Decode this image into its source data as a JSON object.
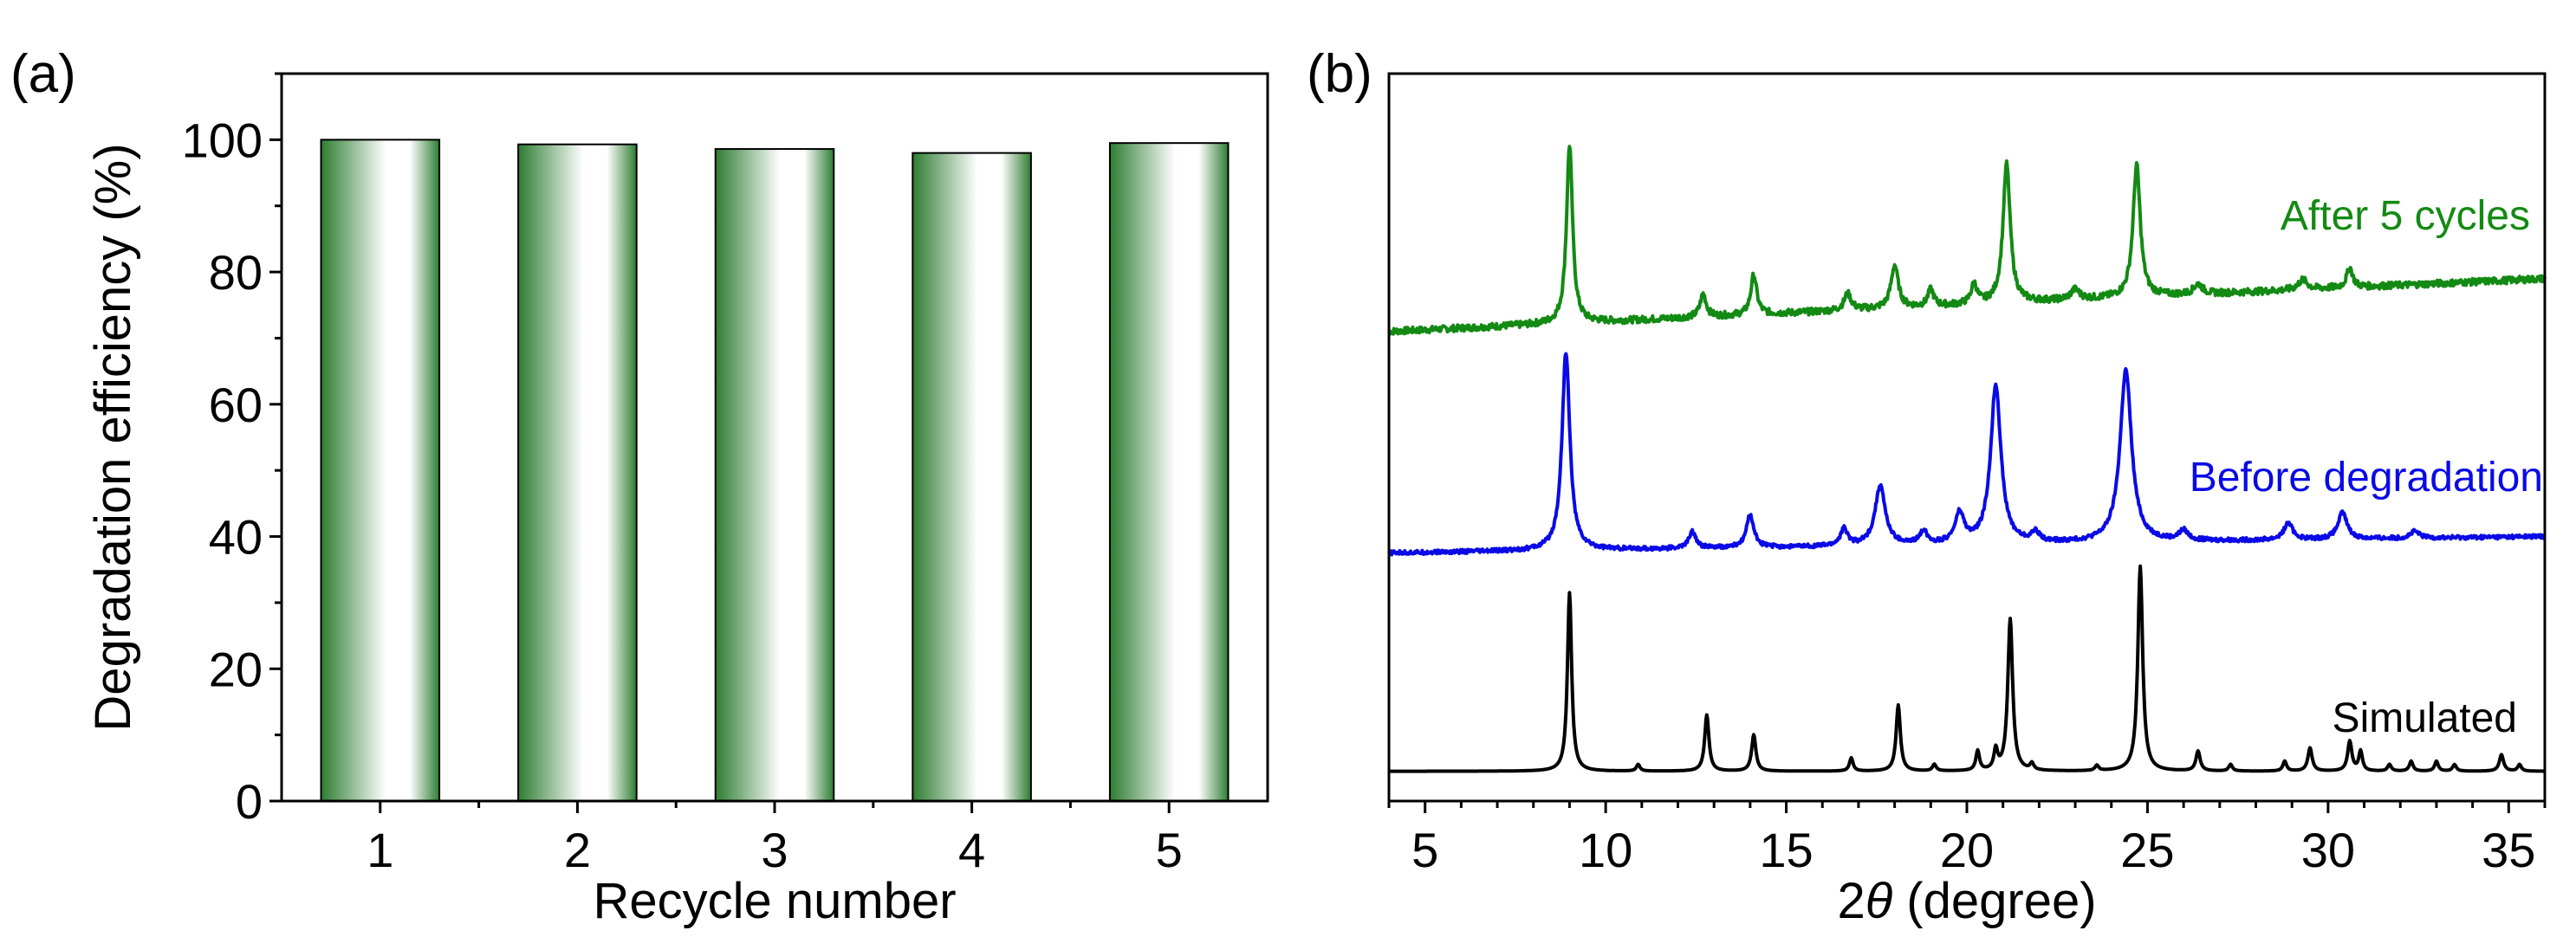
{
  "chart_data": [
    {
      "panel_label": "(a)",
      "type": "bar",
      "title": "",
      "xlabel": "Recycle number",
      "ylabel": "Degradation efficiency (%)",
      "categories": [
        "1",
        "2",
        "3",
        "4",
        "5"
      ],
      "values": [
        100.0,
        99.3,
        98.6,
        98.0,
        99.5
      ],
      "ylim": [
        0,
        110
      ],
      "yticks": [
        0,
        20,
        40,
        60,
        80,
        100
      ],
      "yticklabels": [
        "0",
        "20",
        "40",
        "60",
        "80",
        "100"
      ],
      "bar_color": "#2e7d32",
      "grid": false
    },
    {
      "panel_label": "(b)",
      "type": "line",
      "title": "",
      "xlabel_prefix": "2",
      "xlabel_symbol": "θ",
      "xlabel_suffix": " (degree)",
      "ylabel": "",
      "xlim": [
        4,
        36
      ],
      "ylim": [
        0,
        110
      ],
      "xticks": [
        5,
        10,
        15,
        20,
        25,
        30,
        35
      ],
      "xticklabels": [
        "5",
        "10",
        "15",
        "20",
        "25",
        "30",
        "35"
      ],
      "grid": false,
      "series": [
        {
          "name": "After 5 cycles",
          "color": "#138a13",
          "baseline_start": 71,
          "baseline_end": 79,
          "noise": 0.5,
          "peaks": [
            {
              "x": 9.0,
              "h": 27,
              "w": 0.1
            },
            {
              "x": 12.7,
              "h": 3.5,
              "w": 0.1
            },
            {
              "x": 14.1,
              "h": 6,
              "w": 0.1
            },
            {
              "x": 16.7,
              "h": 2.5,
              "w": 0.12
            },
            {
              "x": 18.0,
              "h": 6.5,
              "w": 0.12
            },
            {
              "x": 19.0,
              "h": 2.5,
              "w": 0.1
            },
            {
              "x": 20.2,
              "h": 3,
              "w": 0.1
            },
            {
              "x": 21.1,
              "h": 21,
              "w": 0.12
            },
            {
              "x": 23.0,
              "h": 1.5,
              "w": 0.15
            },
            {
              "x": 24.7,
              "h": 20,
              "w": 0.12
            },
            {
              "x": 26.4,
              "h": 1.5,
              "w": 0.15
            },
            {
              "x": 29.3,
              "h": 1.5,
              "w": 0.15
            },
            {
              "x": 30.6,
              "h": 3,
              "w": 0.1
            }
          ]
        },
        {
          "name": "Before degradation",
          "color": "#0a0ae6",
          "baseline_start": 37.5,
          "baseline_end": 40,
          "noise": 0.3,
          "peaks": [
            {
              "x": 8.9,
              "h": 30,
              "w": 0.13
            },
            {
              "x": 12.4,
              "h": 2.5,
              "w": 0.12
            },
            {
              "x": 14.0,
              "h": 5,
              "w": 0.12
            },
            {
              "x": 16.6,
              "h": 2.5,
              "w": 0.12
            },
            {
              "x": 17.6,
              "h": 9,
              "w": 0.17
            },
            {
              "x": 18.8,
              "h": 2,
              "w": 0.12
            },
            {
              "x": 19.8,
              "h": 4.5,
              "w": 0.15
            },
            {
              "x": 20.8,
              "h": 24,
              "w": 0.17
            },
            {
              "x": 21.9,
              "h": 1.5,
              "w": 0.12
            },
            {
              "x": 24.4,
              "h": 26,
              "w": 0.19
            },
            {
              "x": 26.0,
              "h": 1.5,
              "w": 0.15
            },
            {
              "x": 28.9,
              "h": 2.5,
              "w": 0.15
            },
            {
              "x": 30.4,
              "h": 4,
              "w": 0.15
            },
            {
              "x": 32.4,
              "h": 1,
              "w": 0.15
            }
          ]
        },
        {
          "name": "Simulated",
          "color": "#000000",
          "baseline_start": 4.5,
          "baseline_end": 4.5,
          "noise": 0,
          "peaks": [
            {
              "x": 9.0,
              "h": 27,
              "w": 0.07
            },
            {
              "x": 10.9,
              "h": 1,
              "w": 0.06
            },
            {
              "x": 12.8,
              "h": 8.5,
              "w": 0.07
            },
            {
              "x": 14.1,
              "h": 5.5,
              "w": 0.07
            },
            {
              "x": 16.8,
              "h": 2,
              "w": 0.06
            },
            {
              "x": 18.1,
              "h": 10,
              "w": 0.07
            },
            {
              "x": 19.1,
              "h": 1,
              "w": 0.06
            },
            {
              "x": 20.3,
              "h": 3,
              "w": 0.06
            },
            {
              "x": 20.8,
              "h": 3,
              "w": 0.06
            },
            {
              "x": 21.2,
              "h": 23,
              "w": 0.08
            },
            {
              "x": 21.8,
              "h": 1,
              "w": 0.06
            },
            {
              "x": 23.6,
              "h": 0.8,
              "w": 0.06
            },
            {
              "x": 24.8,
              "h": 31,
              "w": 0.08
            },
            {
              "x": 26.4,
              "h": 3,
              "w": 0.07
            },
            {
              "x": 27.3,
              "h": 1,
              "w": 0.06
            },
            {
              "x": 28.8,
              "h": 1.5,
              "w": 0.06
            },
            {
              "x": 29.5,
              "h": 3.5,
              "w": 0.07
            },
            {
              "x": 30.6,
              "h": 4.5,
              "w": 0.07
            },
            {
              "x": 30.9,
              "h": 3,
              "w": 0.06
            },
            {
              "x": 31.7,
              "h": 1,
              "w": 0.06
            },
            {
              "x": 32.3,
              "h": 1.5,
              "w": 0.06
            },
            {
              "x": 33.0,
              "h": 1.5,
              "w": 0.06
            },
            {
              "x": 33.5,
              "h": 1,
              "w": 0.06
            },
            {
              "x": 34.8,
              "h": 2.5,
              "w": 0.07
            },
            {
              "x": 35.3,
              "h": 1,
              "w": 0.06
            }
          ]
        }
      ]
    }
  ]
}
